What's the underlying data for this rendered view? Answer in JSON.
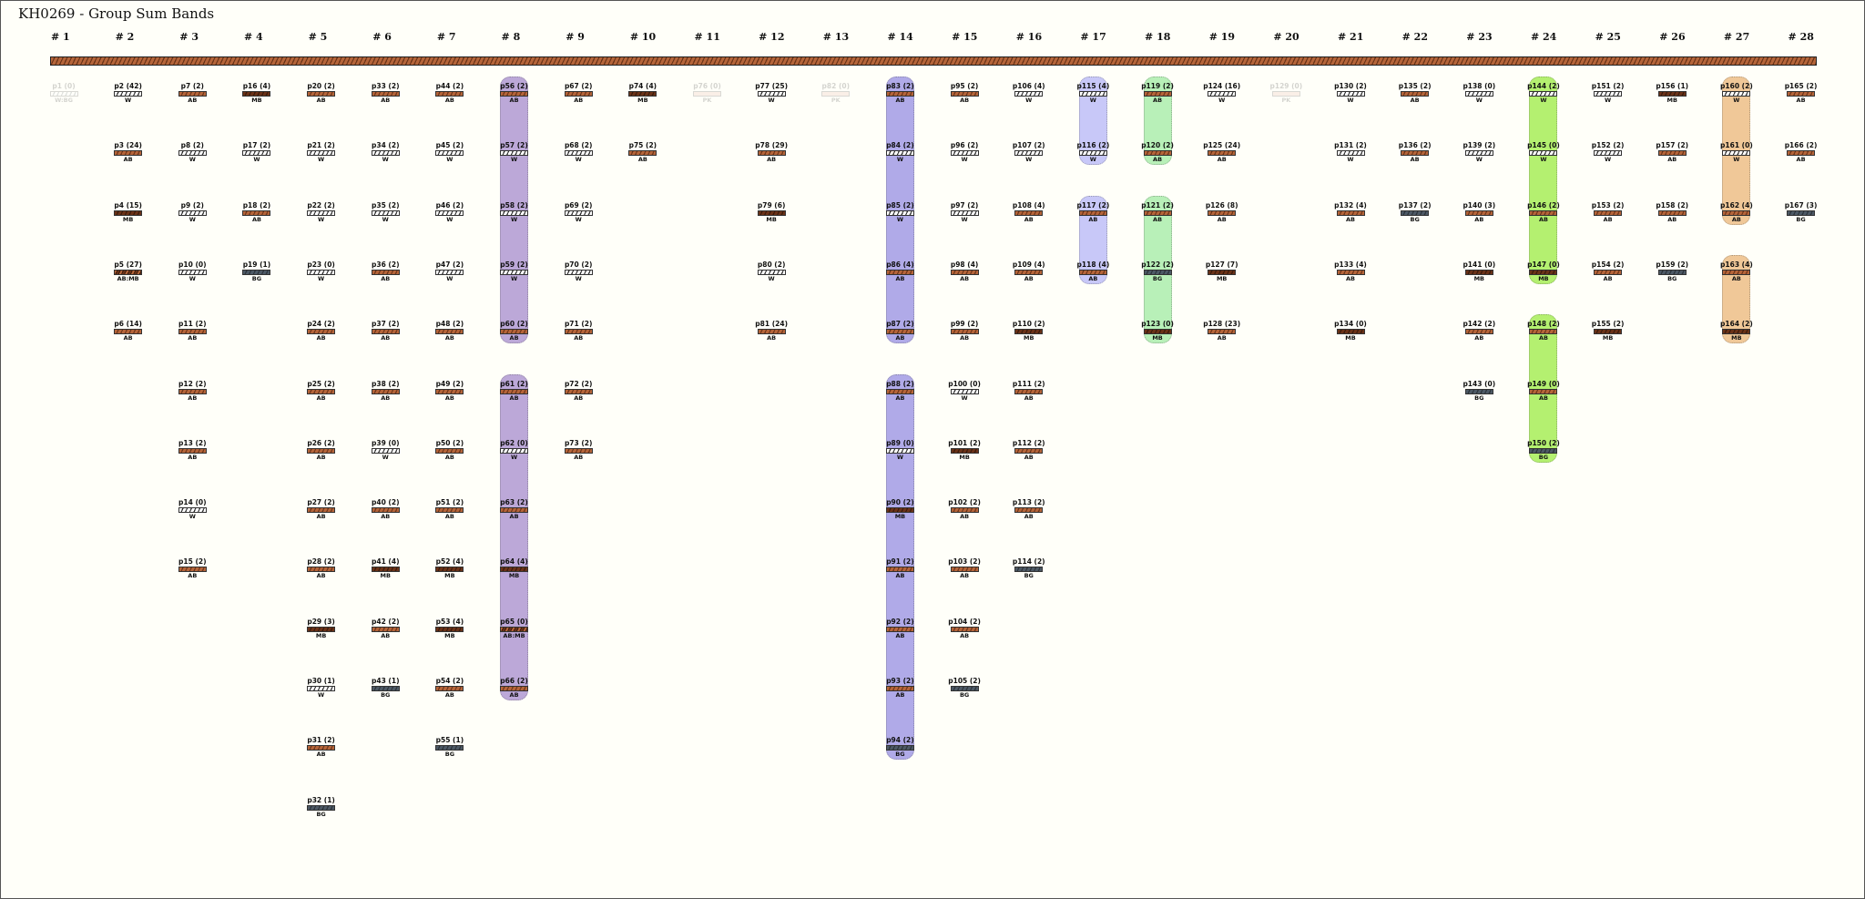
{
  "title": "KH0269 - Group Sum Bands",
  "colors": {
    "W": "#ffffff",
    "AB": "#b5653a",
    "MB": "#6a3218",
    "BG": "#4d5965",
    "PK": "#e8a898",
    "background": "#fffff9"
  },
  "top_bar": {
    "type": "AB"
  },
  "columns": [
    {
      "header": "# 1",
      "items": [
        {
          "label": "p1 (0)",
          "code": "W:BG",
          "faded": true
        }
      ]
    },
    {
      "header": "# 2",
      "items": [
        {
          "label": "p2 (42)",
          "code": "W"
        },
        {
          "label": "p3 (24)",
          "code": "AB"
        },
        {
          "label": "p4 (15)",
          "code": "MB"
        },
        {
          "label": "p5 (27)",
          "code": "AB:MB"
        },
        {
          "label": "p6 (14)",
          "code": "AB"
        }
      ]
    },
    {
      "header": "# 3",
      "items": [
        {
          "label": "p7 (2)",
          "code": "AB"
        },
        {
          "label": "p8 (2)",
          "code": "W"
        },
        {
          "label": "p9 (2)",
          "code": "W"
        },
        {
          "label": "p10 (0)",
          "code": "W"
        },
        {
          "label": "p11 (2)",
          "code": "AB"
        },
        {
          "label": "p12 (2)",
          "code": "AB"
        },
        {
          "label": "p13 (2)",
          "code": "AB"
        },
        {
          "label": "p14 (0)",
          "code": "W"
        },
        {
          "label": "p15 (2)",
          "code": "AB"
        }
      ]
    },
    {
      "header": "# 4",
      "items": [
        {
          "label": "p16 (4)",
          "code": "MB"
        },
        {
          "label": "p17 (2)",
          "code": "W"
        },
        {
          "label": "p18 (2)",
          "code": "AB"
        },
        {
          "label": "p19 (1)",
          "code": "BG"
        }
      ]
    },
    {
      "header": "# 5",
      "items": [
        {
          "label": "p20 (2)",
          "code": "AB"
        },
        {
          "label": "p21 (2)",
          "code": "W"
        },
        {
          "label": "p22 (2)",
          "code": "W"
        },
        {
          "label": "p23 (0)",
          "code": "W"
        },
        {
          "label": "p24 (2)",
          "code": "AB"
        },
        {
          "label": "p25 (2)",
          "code": "AB"
        },
        {
          "label": "p26 (2)",
          "code": "AB"
        },
        {
          "label": "p27 (2)",
          "code": "AB"
        },
        {
          "label": "p28 (2)",
          "code": "AB"
        },
        {
          "label": "p29 (3)",
          "code": "MB"
        },
        {
          "label": "p30 (1)",
          "code": "W"
        },
        {
          "label": "p31 (2)",
          "code": "AB"
        },
        {
          "label": "p32 (1)",
          "code": "BG"
        }
      ]
    },
    {
      "header": "# 6",
      "items": [
        {
          "label": "p33 (2)",
          "code": "AB"
        },
        {
          "label": "p34 (2)",
          "code": "W"
        },
        {
          "label": "p35 (2)",
          "code": "W"
        },
        {
          "label": "p36 (2)",
          "code": "AB"
        },
        {
          "label": "p37 (2)",
          "code": "AB"
        },
        {
          "label": "p38 (2)",
          "code": "AB"
        },
        {
          "label": "p39 (0)",
          "code": "W"
        },
        {
          "label": "p40 (2)",
          "code": "AB"
        },
        {
          "label": "p41 (4)",
          "code": "MB"
        },
        {
          "label": "p42 (2)",
          "code": "AB"
        },
        {
          "label": "p43 (1)",
          "code": "BG"
        }
      ]
    },
    {
      "header": "# 7",
      "items": [
        {
          "label": "p44 (2)",
          "code": "AB"
        },
        {
          "label": "p45 (2)",
          "code": "W"
        },
        {
          "label": "p46 (2)",
          "code": "W"
        },
        {
          "label": "p47 (2)",
          "code": "W"
        },
        {
          "label": "p48 (2)",
          "code": "AB"
        },
        {
          "label": "p49 (2)",
          "code": "AB"
        },
        {
          "label": "p50 (2)",
          "code": "AB"
        },
        {
          "label": "p51 (2)",
          "code": "AB"
        },
        {
          "label": "p52 (4)",
          "code": "MB"
        },
        {
          "label": "p53 (4)",
          "code": "MB"
        },
        {
          "label": "p54 (2)",
          "code": "AB"
        },
        {
          "label": "p55 (1)",
          "code": "BG"
        }
      ]
    },
    {
      "header": "# 8",
      "items": [
        {
          "label": "p56 (2)",
          "code": "AB"
        },
        {
          "label": "p57 (2)",
          "code": "W"
        },
        {
          "label": "p58 (2)",
          "code": "W"
        },
        {
          "label": "p59 (2)",
          "code": "W"
        },
        {
          "label": "p60 (2)",
          "code": "AB"
        },
        {
          "label": "p61 (2)",
          "code": "AB"
        },
        {
          "label": "p62 (0)",
          "code": "W"
        },
        {
          "label": "p63 (2)",
          "code": "AB"
        },
        {
          "label": "p64 (4)",
          "code": "MB"
        },
        {
          "label": "p65 (0)",
          "code": "AB:MB"
        },
        {
          "label": "p66 (2)",
          "code": "AB"
        }
      ]
    },
    {
      "header": "# 9",
      "items": [
        {
          "label": "p67 (2)",
          "code": "AB"
        },
        {
          "label": "p68 (2)",
          "code": "W"
        },
        {
          "label": "p69 (2)",
          "code": "W"
        },
        {
          "label": "p70 (2)",
          "code": "W"
        },
        {
          "label": "p71 (2)",
          "code": "AB"
        },
        {
          "label": "p72 (2)",
          "code": "AB"
        },
        {
          "label": "p73 (2)",
          "code": "AB"
        }
      ]
    },
    {
      "header": "# 10",
      "items": [
        {
          "label": "p74 (4)",
          "code": "MB"
        },
        {
          "label": "p75 (2)",
          "code": "AB"
        }
      ]
    },
    {
      "header": "# 11",
      "items": [
        {
          "label": "p76 (0)",
          "code": "PK",
          "faded": true
        }
      ]
    },
    {
      "header": "# 12",
      "items": [
        {
          "label": "p77 (25)",
          "code": "W"
        },
        {
          "label": "p78 (29)",
          "code": "AB"
        },
        {
          "label": "p79 (6)",
          "code": "MB"
        },
        {
          "label": "p80 (2)",
          "code": "W"
        },
        {
          "label": "p81 (24)",
          "code": "AB"
        }
      ]
    },
    {
      "header": "# 13",
      "items": [
        {
          "label": "p82 (0)",
          "code": "PK",
          "faded": true
        }
      ]
    },
    {
      "header": "# 14",
      "items": [
        {
          "label": "p83 (2)",
          "code": "AB"
        },
        {
          "label": "p84 (2)",
          "code": "W"
        },
        {
          "label": "p85 (2)",
          "code": "W"
        },
        {
          "label": "p86 (4)",
          "code": "AB"
        },
        {
          "label": "p87 (2)",
          "code": "AB"
        },
        {
          "label": "p88 (2)",
          "code": "AB"
        },
        {
          "label": "p89 (0)",
          "code": "W"
        },
        {
          "label": "p90 (2)",
          "code": "MB"
        },
        {
          "label": "p91 (2)",
          "code": "AB"
        },
        {
          "label": "p92 (2)",
          "code": "AB"
        },
        {
          "label": "p93 (2)",
          "code": "AB"
        },
        {
          "label": "p94 (2)",
          "code": "BG"
        }
      ]
    },
    {
      "header": "# 15",
      "items": [
        {
          "label": "p95 (2)",
          "code": "AB"
        },
        {
          "label": "p96 (2)",
          "code": "W"
        },
        {
          "label": "p97 (2)",
          "code": "W"
        },
        {
          "label": "p98 (4)",
          "code": "AB"
        },
        {
          "label": "p99 (2)",
          "code": "AB"
        },
        {
          "label": "p100 (0)",
          "code": "W"
        },
        {
          "label": "p101 (2)",
          "code": "MB"
        },
        {
          "label": "p102 (2)",
          "code": "AB"
        },
        {
          "label": "p103 (2)",
          "code": "AB"
        },
        {
          "label": "p104 (2)",
          "code": "AB"
        },
        {
          "label": "p105 (2)",
          "code": "BG"
        }
      ]
    },
    {
      "header": "# 16",
      "items": [
        {
          "label": "p106 (4)",
          "code": "W"
        },
        {
          "label": "p107 (2)",
          "code": "W"
        },
        {
          "label": "p108 (4)",
          "code": "AB"
        },
        {
          "label": "p109 (4)",
          "code": "AB"
        },
        {
          "label": "p110 (2)",
          "code": "MB"
        },
        {
          "label": "p111 (2)",
          "code": "AB"
        },
        {
          "label": "p112 (2)",
          "code": "AB"
        },
        {
          "label": "p113 (2)",
          "code": "AB"
        },
        {
          "label": "p114 (2)",
          "code": "BG"
        }
      ]
    },
    {
      "header": "# 17",
      "items": [
        {
          "label": "p115 (4)",
          "code": "W"
        },
        {
          "label": "p116 (2)",
          "code": "W"
        },
        {
          "label": "p117 (2)",
          "code": "AB"
        },
        {
          "label": "p118 (4)",
          "code": "AB"
        }
      ]
    },
    {
      "header": "# 18",
      "items": [
        {
          "label": "p119 (2)",
          "code": "AB"
        },
        {
          "label": "p120 (2)",
          "code": "AB"
        },
        {
          "label": "p121 (2)",
          "code": "AB"
        },
        {
          "label": "p122 (2)",
          "code": "BG"
        },
        {
          "label": "p123 (0)",
          "code": "MB"
        }
      ]
    },
    {
      "header": "# 19",
      "items": [
        {
          "label": "p124 (16)",
          "code": "W"
        },
        {
          "label": "p125 (24)",
          "code": "AB"
        },
        {
          "label": "p126 (8)",
          "code": "AB"
        },
        {
          "label": "p127 (7)",
          "code": "MB"
        },
        {
          "label": "p128 (23)",
          "code": "AB"
        }
      ]
    },
    {
      "header": "# 20",
      "items": [
        {
          "label": "p129 (0)",
          "code": "PK",
          "faded": true
        }
      ]
    },
    {
      "header": "# 21",
      "items": [
        {
          "label": "p130 (2)",
          "code": "W"
        },
        {
          "label": "p131 (2)",
          "code": "W"
        },
        {
          "label": "p132 (4)",
          "code": "AB"
        },
        {
          "label": "p133 (4)",
          "code": "AB"
        },
        {
          "label": "p134 (0)",
          "code": "MB"
        }
      ]
    },
    {
      "header": "# 22",
      "items": [
        {
          "label": "p135 (2)",
          "code": "AB"
        },
        {
          "label": "p136 (2)",
          "code": "AB"
        },
        {
          "label": "p137 (2)",
          "code": "BG"
        }
      ]
    },
    {
      "header": "# 23",
      "items": [
        {
          "label": "p138 (0)",
          "code": "W"
        },
        {
          "label": "p139 (2)",
          "code": "W"
        },
        {
          "label": "p140 (3)",
          "code": "AB"
        },
        {
          "label": "p141 (0)",
          "code": "MB"
        },
        {
          "label": "p142 (2)",
          "code": "AB"
        },
        {
          "label": "p143 (0)",
          "code": "BG"
        }
      ]
    },
    {
      "header": "# 24",
      "items": [
        {
          "label": "p144 (2)",
          "code": "W"
        },
        {
          "label": "p145 (0)",
          "code": "W"
        },
        {
          "label": "p146 (2)",
          "code": "AB"
        },
        {
          "label": "p147 (0)",
          "code": "MB"
        },
        {
          "label": "p148 (2)",
          "code": "AB"
        },
        {
          "label": "p149 (0)",
          "code": "AB"
        },
        {
          "label": "p150 (2)",
          "code": "BG"
        }
      ]
    },
    {
      "header": "# 25",
      "items": [
        {
          "label": "p151 (2)",
          "code": "W"
        },
        {
          "label": "p152 (2)",
          "code": "W"
        },
        {
          "label": "p153 (2)",
          "code": "AB"
        },
        {
          "label": "p154 (2)",
          "code": "AB"
        },
        {
          "label": "p155 (2)",
          "code": "MB"
        }
      ]
    },
    {
      "header": "# 26",
      "items": [
        {
          "label": "p156 (1)",
          "code": "MB"
        },
        {
          "label": "p157 (2)",
          "code": "AB"
        },
        {
          "label": "p158 (2)",
          "code": "AB"
        },
        {
          "label": "p159 (2)",
          "code": "BG"
        }
      ]
    },
    {
      "header": "# 27",
      "items": [
        {
          "label": "p160 (2)",
          "code": "W"
        },
        {
          "label": "p161 (0)",
          "code": "W"
        },
        {
          "label": "p162 (4)",
          "code": "AB"
        },
        {
          "label": "p163 (4)",
          "code": "AB"
        },
        {
          "label": "p164 (2)",
          "code": "MB"
        }
      ]
    },
    {
      "header": "# 28",
      "items": [
        {
          "label": "p165 (2)",
          "code": "AB"
        },
        {
          "label": "p166 (2)",
          "code": "AB"
        },
        {
          "label": "p167 (3)",
          "code": "BG"
        }
      ]
    }
  ],
  "groups": [
    {
      "column": "# 8",
      "from": "p56",
      "to": "p60",
      "color": "#bca8d8"
    },
    {
      "column": "# 8",
      "from": "p61",
      "to": "p66",
      "color": "#bca8d8"
    },
    {
      "column": "# 14",
      "from": "p83",
      "to": "p87",
      "color": "#b0aae8"
    },
    {
      "column": "# 14",
      "from": "p88",
      "to": "p94",
      "color": "#b0aae8"
    },
    {
      "column": "# 17",
      "from": "p115",
      "to": "p116",
      "color": "#c8c8f8"
    },
    {
      "column": "# 17",
      "from": "p117",
      "to": "p118",
      "color": "#c8c8f8"
    },
    {
      "column": "# 18",
      "from": "p119",
      "to": "p120",
      "color": "#b8f0b8"
    },
    {
      "column": "# 18",
      "from": "p121",
      "to": "p123",
      "color": "#b8f0b8"
    },
    {
      "column": "# 24",
      "from": "p144",
      "to": "p147",
      "color": "#b4f070"
    },
    {
      "column": "# 24",
      "from": "p148",
      "to": "p150",
      "color": "#b4f070"
    },
    {
      "column": "# 27",
      "from": "p160",
      "to": "p162",
      "color": "#f0c898"
    },
    {
      "column": "# 27",
      "from": "p163",
      "to": "p164",
      "color": "#f0c898"
    }
  ]
}
